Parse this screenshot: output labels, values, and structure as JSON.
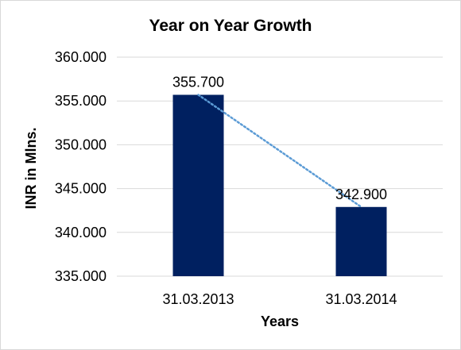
{
  "chart_data": {
    "type": "bar",
    "title": "Year on Year Growth",
    "xlabel": "Years",
    "ylabel": "INR in Mlns.",
    "categories": [
      "31.03.2013",
      "31.03.2014"
    ],
    "values": [
      355.7,
      342.9
    ],
    "data_labels": [
      "355.700",
      "342.900"
    ],
    "ylim": [
      335,
      360
    ],
    "y_ticks": [
      335,
      340,
      345,
      350,
      355,
      360
    ],
    "y_tick_labels": [
      "335.000",
      "340.000",
      "345.000",
      "350.000",
      "355.000",
      "360.000"
    ],
    "grid": true,
    "legend": "none",
    "trendline": {
      "type": "linear",
      "style": "dotted",
      "color": "#5b9bd5"
    },
    "colors": {
      "bar": "#002060",
      "grid": "#d9d9d9",
      "trendline": "#5b9bd5"
    }
  }
}
